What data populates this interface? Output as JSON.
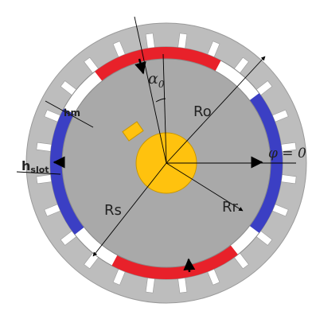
{
  "labels": {
    "alpha0": "α",
    "alpha0_sub": "0",
    "ro": "Ro",
    "rs": "Rs",
    "rr": "Rr",
    "phi": "φ = 0",
    "hm": "hm",
    "hslot": "h",
    "hslot_sub": "slot"
  },
  "colors": {
    "stator": "#bdbdbd",
    "stator_edge": "#9a9a9a",
    "rotor_core": "#a9a9a9",
    "magnet_north": "#e8212a",
    "magnet_south": "#3b3fc4",
    "shaft": "#ffc20e",
    "slot": "#ffffff",
    "line": "#000000"
  },
  "icons": {
    "arrow_glyph": "black-arrow-icon"
  }
}
